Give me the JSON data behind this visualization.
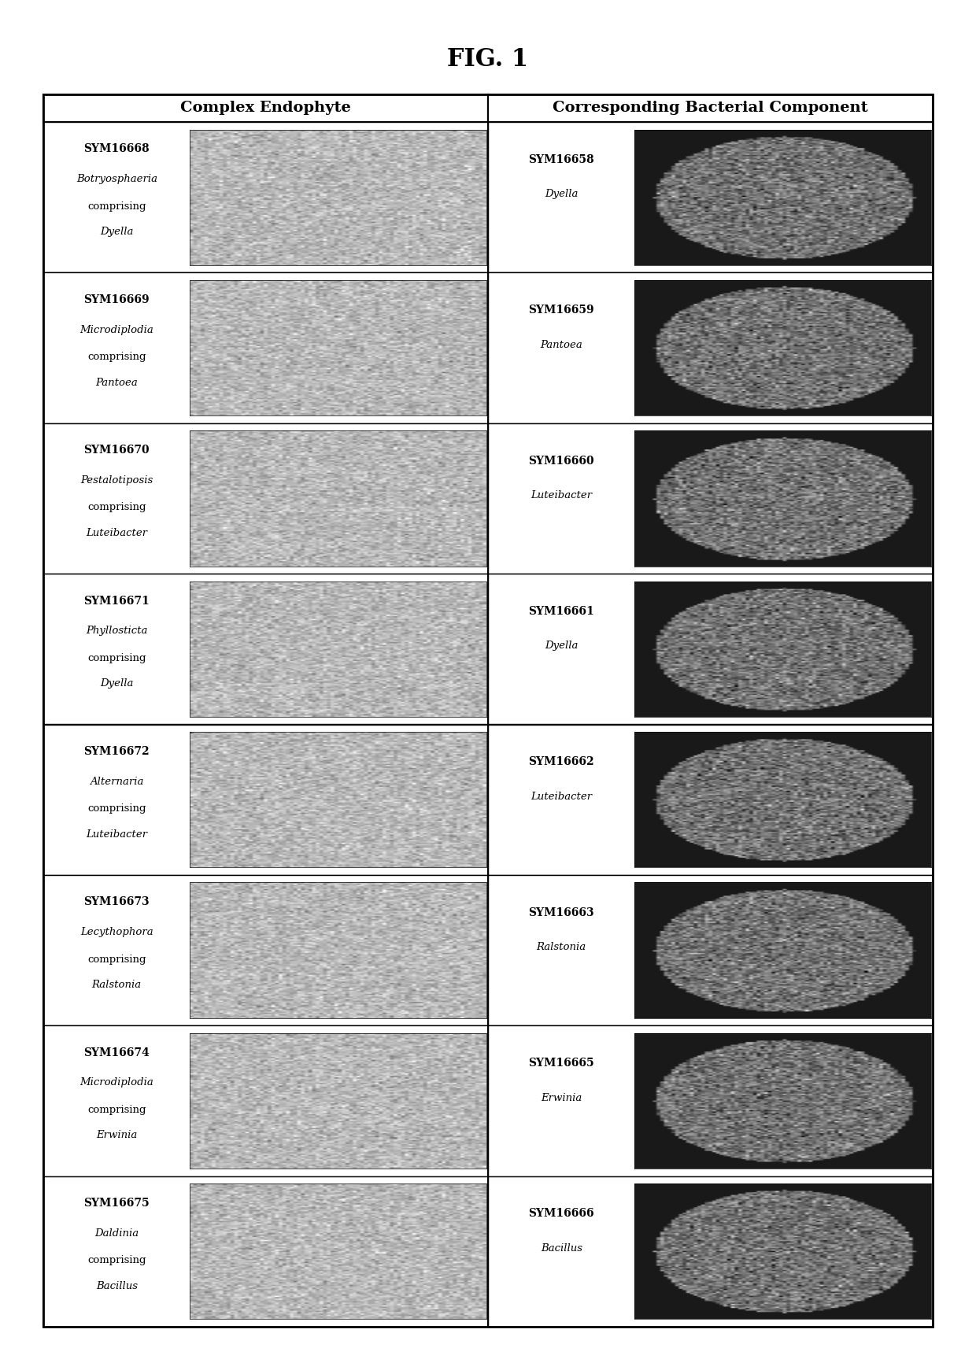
{
  "title": "FIG. 1",
  "col1_header": "Complex Endophyte",
  "col2_header": "Corresponding Bacterial Component",
  "rows": [
    {
      "left_id": "SYM16668",
      "left_name": "Botryosphaeria\ncomprising\nDyella",
      "right_id": "SYM16658",
      "right_name": "Dyella"
    },
    {
      "left_id": "SYM16669",
      "left_name": "Microdiplodia\ncomprising\nPantoea",
      "right_id": "SYM16659",
      "right_name": "Pantoea"
    },
    {
      "left_id": "SYM16670",
      "left_name": "Pestalotiposis\ncomprising\nLuteibacter",
      "right_id": "SYM16660",
      "right_name": "Luteibacter"
    },
    {
      "left_id": "SYM16671",
      "left_name": "Phyllosticta\ncomprising\nDyella",
      "right_id": "SYM16661",
      "right_name": "Dyella"
    },
    {
      "left_id": "SYM16672",
      "left_name": "Alternaria\ncomprising\nLuteibacter",
      "right_id": "SYM16662",
      "right_name": "Luteibacter"
    },
    {
      "left_id": "SYM16673",
      "left_name": "Lecythophora\ncomprising\nRalstonia",
      "right_id": "SYM16663",
      "right_name": "Ralstonia"
    },
    {
      "left_id": "SYM16674",
      "left_name": "Microdiplodia\ncomprising\nErwinia",
      "right_id": "SYM16665",
      "right_name": "Erwinia"
    },
    {
      "left_id": "SYM16675",
      "left_name": "Daldinia\ncomprising\nBacillus",
      "right_id": "SYM16666",
      "right_name": "Bacillus"
    }
  ],
  "bg_color": "#ffffff",
  "table_border_color": "#000000",
  "text_color": "#000000",
  "image_placeholder_color_left": "#c8c8c8",
  "image_placeholder_color_right": "#505050"
}
